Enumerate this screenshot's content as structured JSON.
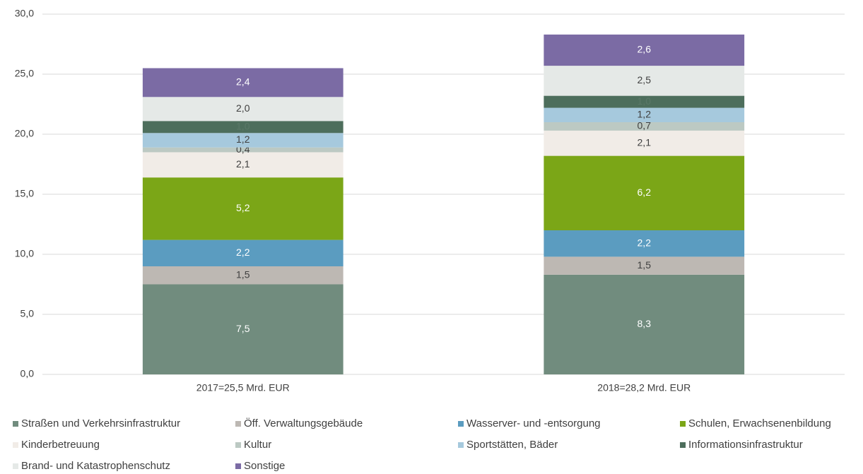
{
  "chart_data": {
    "type": "stacked_bar",
    "categories": [
      "2017=25,5 Mrd. EUR",
      "2018=28,2 Mrd. EUR"
    ],
    "series": [
      {
        "name": "Straßen und Verkehrsinfrastruktur",
        "color": "#718c7e",
        "label_color": "#ffffff",
        "values": [
          7.5,
          8.3
        ],
        "value_labels": [
          "7,5",
          "8,3"
        ]
      },
      {
        "name": "Öff. Verwaltungsgebäude",
        "color": "#bdb8b3",
        "label_color": "#404040",
        "values": [
          1.5,
          1.5
        ],
        "value_labels": [
          "1,5",
          "1,5"
        ]
      },
      {
        "name": "Wasserver- und -entsorgung",
        "color": "#5b9cc0",
        "label_color": "#ffffff",
        "values": [
          2.2,
          2.2
        ],
        "value_labels": [
          "2,2",
          "2,2"
        ]
      },
      {
        "name": "Schulen, Erwachsenenbildung",
        "color": "#7ba617",
        "label_color": "#ffffff",
        "values": [
          5.2,
          6.2
        ],
        "value_labels": [
          "5,2",
          "6,2"
        ]
      },
      {
        "name": "Kinderbetreuung",
        "color": "#f1ece7",
        "label_color": "#404040",
        "values": [
          2.1,
          2.1
        ],
        "value_labels": [
          "2,1",
          "2,1"
        ]
      },
      {
        "name": "Kultur",
        "color": "#bcc9c3",
        "label_color": "#404040",
        "values": [
          0.4,
          0.7
        ],
        "value_labels": [
          "0,4",
          "0,7"
        ]
      },
      {
        "name": "Sportstätten, Bäder",
        "color": "#a6c9dd",
        "label_color": "#404040",
        "values": [
          1.2,
          1.2
        ],
        "value_labels": [
          "1,2",
          "1,2"
        ]
      },
      {
        "name": "Informationsinfrastruktur",
        "color": "#4d6e5c",
        "label_color": "#5a7868",
        "values": [
          1.0,
          1.0
        ],
        "value_labels": [
          "1,0",
          "1,0"
        ]
      },
      {
        "name": "Brand- und Katastrophenschutz",
        "color": "#e5e9e7",
        "label_color": "#404040",
        "values": [
          2.0,
          2.5
        ],
        "value_labels": [
          "2,0",
          "2,5"
        ]
      },
      {
        "name": "Sonstige",
        "color": "#7b6ba4",
        "label_color": "#ffffff",
        "values": [
          2.4,
          2.6
        ],
        "value_labels": [
          "2,4",
          "2,6"
        ]
      }
    ],
    "ylim": [
      0,
      30
    ],
    "yticks": [
      {
        "value": 0,
        "label": "0,0"
      },
      {
        "value": 5,
        "label": "5,0"
      },
      {
        "value": 10,
        "label": "10,0"
      },
      {
        "value": 15,
        "label": "15,0"
      },
      {
        "value": 20,
        "label": "20,0"
      },
      {
        "value": 25,
        "label": "25,0"
      },
      {
        "value": 30,
        "label": "30,0"
      }
    ],
    "grid": true
  }
}
